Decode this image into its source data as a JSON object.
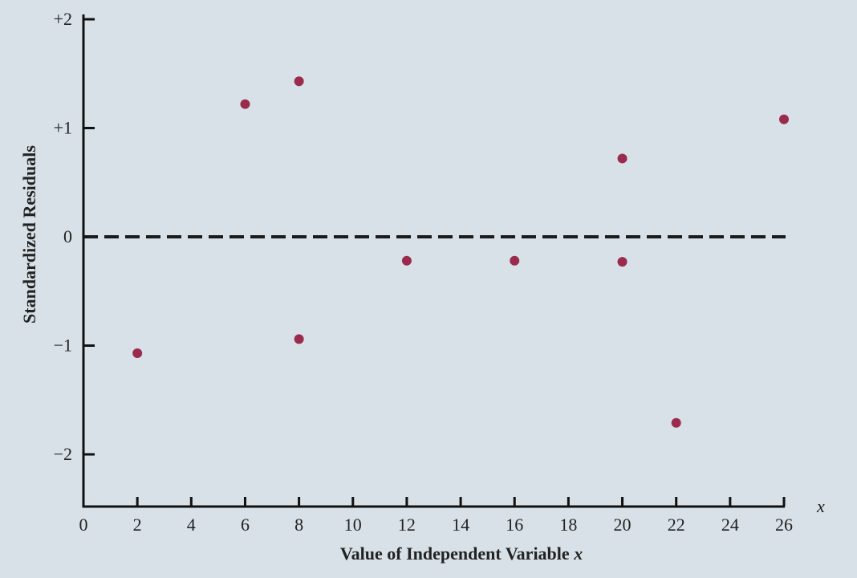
{
  "chart_data": {
    "type": "scatter",
    "xlabel_text": "Value of Independent Variable ",
    "xlabel_var": "x",
    "ylabel": "Standardized Residuals",
    "x_axis_symbol": "x",
    "xlim": [
      0,
      26
    ],
    "ylim": [
      -2.5,
      2
    ],
    "x_ticks": [
      {
        "value": 0,
        "label": "0"
      },
      {
        "value": 2,
        "label": "2"
      },
      {
        "value": 4,
        "label": "4"
      },
      {
        "value": 6,
        "label": "6"
      },
      {
        "value": 8,
        "label": "8"
      },
      {
        "value": 10,
        "label": "10"
      },
      {
        "value": 12,
        "label": "12"
      },
      {
        "value": 14,
        "label": "14"
      },
      {
        "value": 16,
        "label": "16"
      },
      {
        "value": 18,
        "label": "18"
      },
      {
        "value": 20,
        "label": "20"
      },
      {
        "value": 22,
        "label": "22"
      },
      {
        "value": 24,
        "label": "24"
      },
      {
        "value": 26,
        "label": "26"
      }
    ],
    "y_ticks": [
      {
        "value": 2,
        "label": "+2"
      },
      {
        "value": 1,
        "label": "+1"
      },
      {
        "value": 0,
        "label": "0"
      },
      {
        "value": -1,
        "label": "−1"
      },
      {
        "value": -2,
        "label": "−2"
      }
    ],
    "reference_line": {
      "y": 0,
      "style": "dashed"
    },
    "points": [
      {
        "x": 2,
        "y": -1.07
      },
      {
        "x": 6,
        "y": 1.22
      },
      {
        "x": 8,
        "y": 1.43
      },
      {
        "x": 8,
        "y": -0.94
      },
      {
        "x": 12,
        "y": -0.22
      },
      {
        "x": 16,
        "y": -0.22
      },
      {
        "x": 20,
        "y": 0.72
      },
      {
        "x": 20,
        "y": -0.23
      },
      {
        "x": 22,
        "y": -1.71
      },
      {
        "x": 26,
        "y": 1.08
      }
    ],
    "grid": false,
    "colors": {
      "background": "#d7e1e7",
      "point": "#9b2b4c",
      "axis": "#111111"
    }
  }
}
